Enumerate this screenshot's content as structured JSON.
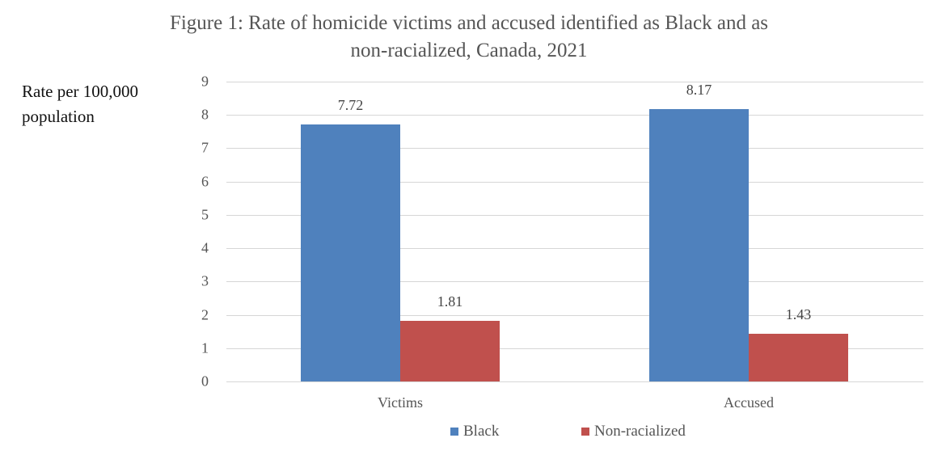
{
  "title_line1": "Figure 1: Rate of homicide victims and accused identified as Black and as",
  "title_line2": "non-racialized, Canada, 2021",
  "ylabel_line1": "Rate per 100,000",
  "ylabel_line2": "population",
  "colors": {
    "black": "#4f81bd",
    "non_racialized": "#c0504d"
  },
  "ticks": [
    "0",
    "1",
    "2",
    "3",
    "4",
    "5",
    "6",
    "7",
    "8",
    "9"
  ],
  "categories": [
    "Victims",
    "Accused"
  ],
  "legend": [
    "Black",
    "Non-racialized"
  ],
  "labels": {
    "victims_black": "7.72",
    "victims_nonrac": "1.81",
    "accused_black": "8.17",
    "accused_nonrac": "1.43"
  },
  "chart_data": {
    "type": "bar",
    "title": "Figure 1: Rate of homicide victims and accused identified as Black and as non-racialized, Canada, 2021",
    "xlabel": "",
    "ylabel": "Rate per 100,000 population",
    "categories": [
      "Victims",
      "Accused"
    ],
    "series": [
      {
        "name": "Black",
        "values": [
          7.72,
          8.17
        ],
        "color": "#4f81bd"
      },
      {
        "name": "Non-racialized",
        "values": [
          1.81,
          1.43
        ],
        "color": "#c0504d"
      }
    ],
    "ylim": [
      0,
      9
    ],
    "yticks": [
      0,
      1,
      2,
      3,
      4,
      5,
      6,
      7,
      8,
      9
    ],
    "grid": true,
    "legend_position": "bottom",
    "data_labels": true
  }
}
